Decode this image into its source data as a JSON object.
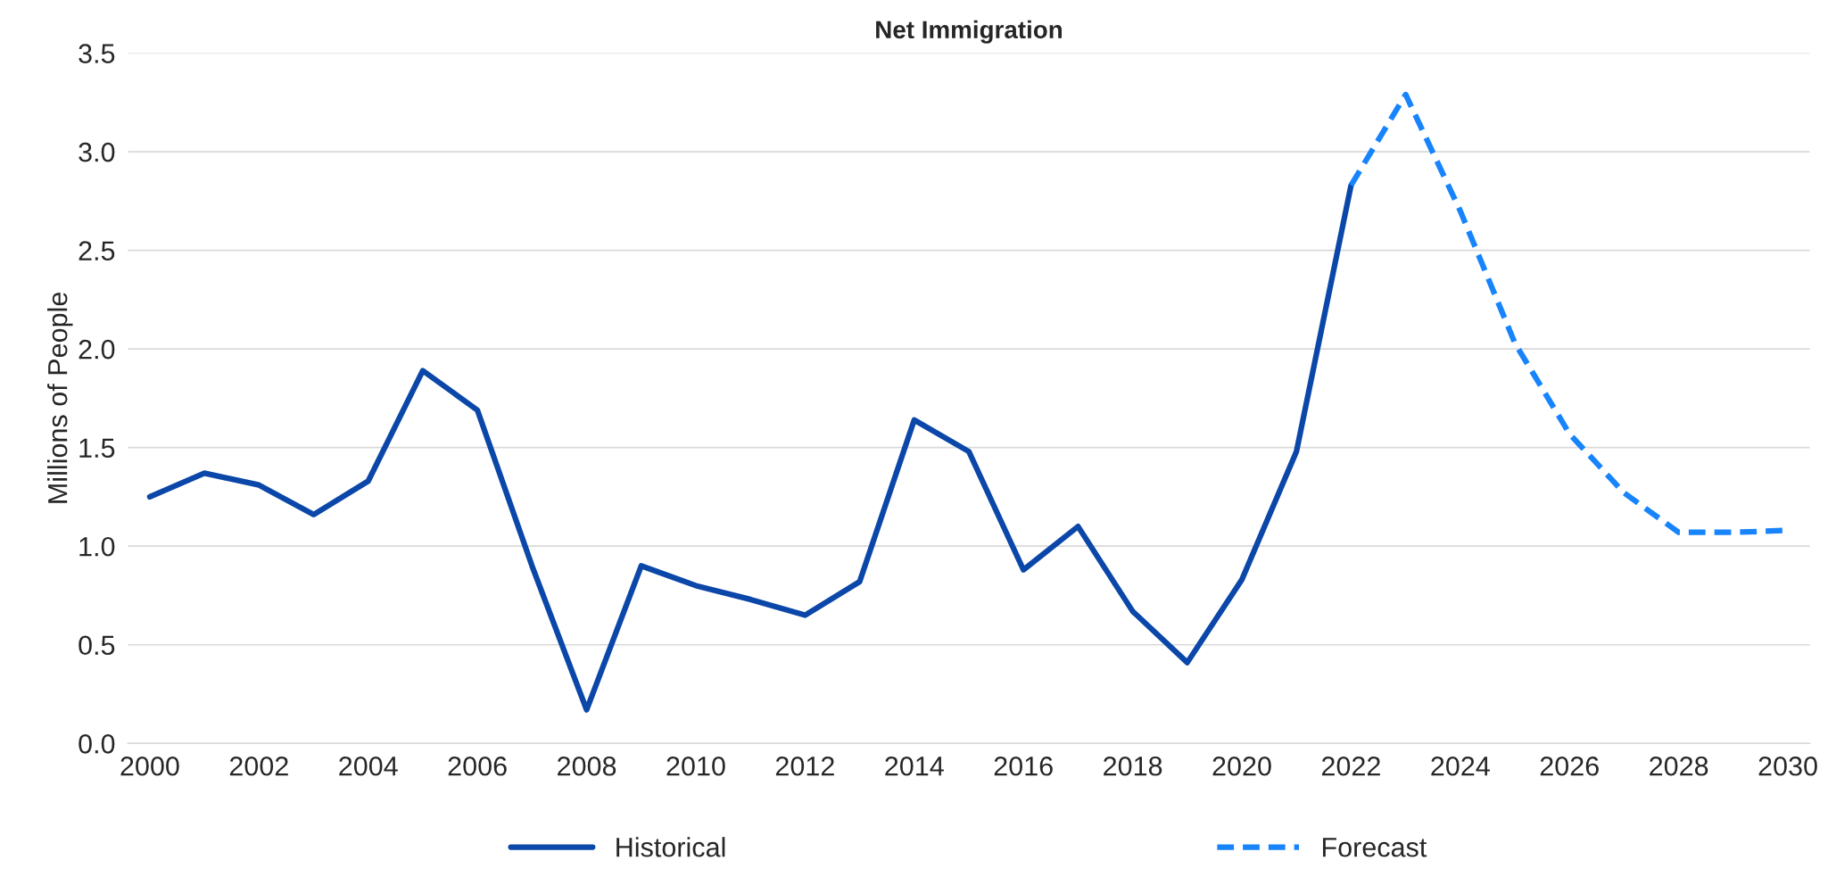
{
  "chart_data": {
    "type": "line",
    "title": "Net Immigration",
    "ylabel": "Millions of People",
    "ylim": [
      0,
      3.5
    ],
    "yticks": [
      {
        "value": 0,
        "label": "0.0"
      },
      {
        "value": 0.5,
        "label": "0.5"
      },
      {
        "value": 1,
        "label": "1.0"
      },
      {
        "value": 1.5,
        "label": "1.5"
      },
      {
        "value": 2,
        "label": "2.0"
      },
      {
        "value": 2.5,
        "label": "2.5"
      },
      {
        "value": 3,
        "label": "3.0"
      },
      {
        "value": 3.5,
        "label": "3.5"
      }
    ],
    "xlim": [
      1999.6,
      2030.4
    ],
    "xticks": [
      2000,
      2002,
      2004,
      2006,
      2008,
      2010,
      2012,
      2014,
      2016,
      2018,
      2020,
      2022,
      2024,
      2026,
      2028,
      2030
    ],
    "grid": "y",
    "legend": "bottom",
    "series": [
      {
        "name": "Historical",
        "color": "#0b47a8",
        "line_style": "solid",
        "x": [
          2000,
          2001,
          2002,
          2003,
          2004,
          2005,
          2006,
          2007,
          2008,
          2009,
          2010,
          2011,
          2012,
          2013,
          2014,
          2015,
          2016,
          2017,
          2018,
          2019,
          2020,
          2021,
          2022
        ],
        "values": [
          1.25,
          1.37,
          1.31,
          1.16,
          1.33,
          1.89,
          1.69,
          0.9,
          0.17,
          0.9,
          0.8,
          0.73,
          0.65,
          0.82,
          1.64,
          1.48,
          0.88,
          1.1,
          0.67,
          0.41,
          0.83,
          1.48,
          2.83
        ]
      },
      {
        "name": "Forecast",
        "color": "#1784fc",
        "line_style": "dashed",
        "x": [
          2022,
          2023,
          2024,
          2025,
          2026,
          2027,
          2028,
          2029,
          2030
        ],
        "values": [
          2.83,
          3.29,
          2.7,
          2.03,
          1.57,
          1.27,
          1.07,
          1.07,
          1.08
        ]
      }
    ]
  }
}
